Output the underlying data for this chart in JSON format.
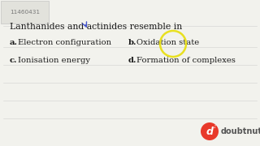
{
  "bg_color": "#f2f2ed",
  "id_text": "11460431",
  "title": "Lanthanides and actinides resemble in",
  "options": [
    {
      "label": "a.",
      "text": "Electron configuration"
    },
    {
      "label": "b.",
      "text": "Oxidation state"
    },
    {
      "label": "c.",
      "text": "Ionisation energy"
    },
    {
      "label": "d.",
      "text": "Formation of complexes"
    }
  ],
  "doubtnut_color": "#e8392a",
  "highlight_circle_color": "#e8e020",
  "title_fontsize": 7.8,
  "option_fontsize": 7.2,
  "id_fontsize": 5.2,
  "text_color": "#1a1a1a",
  "line_color": "#d0d0d0",
  "logo_text_color": "#cc3322"
}
